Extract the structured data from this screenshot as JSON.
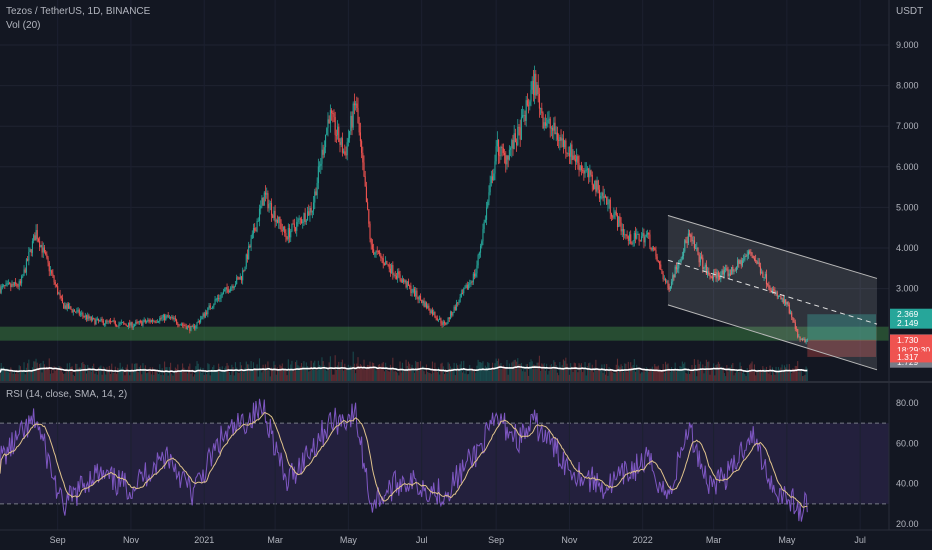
{
  "header": {
    "symbol_line": "Tezos / TetherUS, 1D, BINANCE",
    "volume_label": "Vol (20)",
    "currency": "USDT",
    "rsi_label": "RSI (14, close, SMA, 14, 2)"
  },
  "colors": {
    "background": "#131722",
    "up": "#26a69a",
    "down": "#ef5350",
    "rsi_line": "#7e57c2",
    "rsi_ma": "#e0c38c",
    "rsi_band": "#2a2447",
    "channel": "#b8b8b8",
    "support_zone": "#4caf50",
    "volume_ma": "#ffffff"
  },
  "chart_data": [
    {
      "type": "candlestick",
      "title": "Tezos / TetherUS, 1D, BINANCE",
      "ylabel": "USDT",
      "ylim": [
        1.0,
        9.6
      ],
      "y_ticks": [
        "9.000",
        "8.000",
        "7.000",
        "6.000",
        "5.000",
        "4.000",
        "3.000"
      ],
      "x_ticks": [
        "Sep",
        "Nov",
        "2021",
        "Mar",
        "May",
        "Jul",
        "Sep",
        "Nov",
        "2022",
        "Mar",
        "May",
        "Jul"
      ],
      "x_range": [
        "2020-07-15",
        "2022-07-25"
      ],
      "approx_close_path": [
        [
          "2020-07-15",
          3.0
        ],
        [
          "2020-08-01",
          3.1
        ],
        [
          "2020-08-14",
          4.4
        ],
        [
          "2020-09-05",
          2.6
        ],
        [
          "2020-10-01",
          2.2
        ],
        [
          "2020-11-01",
          2.1
        ],
        [
          "2020-12-01",
          2.3
        ],
        [
          "2020-12-22",
          2.0
        ],
        [
          "2021-01-10",
          2.7
        ],
        [
          "2021-02-01",
          3.3
        ],
        [
          "2021-02-20",
          5.3
        ],
        [
          "2021-03-10",
          4.3
        ],
        [
          "2021-04-01",
          5.0
        ],
        [
          "2021-04-15",
          7.3
        ],
        [
          "2021-04-28",
          6.3
        ],
        [
          "2021-05-07",
          7.6
        ],
        [
          "2021-05-20",
          4.0
        ],
        [
          "2021-06-15",
          3.2
        ],
        [
          "2021-07-20",
          2.1
        ],
        [
          "2021-08-15",
          3.4
        ],
        [
          "2021-09-02",
          6.5
        ],
        [
          "2021-09-08",
          6.2
        ],
        [
          "2021-09-20",
          6.8
        ],
        [
          "2021-10-03",
          8.1
        ],
        [
          "2021-10-10",
          7.2
        ],
        [
          "2021-11-01",
          6.4
        ],
        [
          "2021-12-01",
          5.2
        ],
        [
          "2021-12-20",
          4.2
        ],
        [
          "2022-01-05",
          4.3
        ],
        [
          "2022-01-22",
          3.0
        ],
        [
          "2022-02-08",
          4.3
        ],
        [
          "2022-02-25",
          3.3
        ],
        [
          "2022-03-15",
          3.4
        ],
        [
          "2022-04-01",
          3.9
        ],
        [
          "2022-04-20",
          2.9
        ],
        [
          "2022-05-01",
          2.6
        ],
        [
          "2022-05-12",
          1.7
        ],
        [
          "2022-05-18",
          1.73
        ]
      ],
      "price_badges": [
        {
          "label": "2.369",
          "color": "#26a69a"
        },
        {
          "label": "2.149",
          "color": "#26a69a"
        },
        {
          "label": "1.738",
          "color": "#787b86"
        },
        {
          "label": "1.730",
          "color": "#ef5350"
        },
        {
          "label": "18:29:30",
          "color": "#ef5350"
        },
        {
          "label": "1.729",
          "color": "#787b86"
        },
        {
          "label": "1.317",
          "color": "#ef5350"
        }
      ]
    },
    {
      "type": "line",
      "title": "RSI (14, close, SMA, 14, 2)",
      "ylim": [
        20,
        85
      ],
      "y_ticks": [
        "80.00",
        "60.00",
        "40.00",
        "20.00"
      ],
      "band": [
        30,
        70
      ],
      "series": [
        {
          "values": [
            [
              "2020-07-15",
              52
            ],
            [
              "2020-08-14",
              72
            ],
            [
              "2020-09-05",
              28
            ],
            [
              "2020-10-01",
              45
            ],
            [
              "2020-11-01",
              38
            ],
            [
              "2020-12-01",
              55
            ],
            [
              "2020-12-22",
              35
            ],
            [
              "2021-01-15",
              62
            ],
            [
              "2021-02-20",
              78
            ],
            [
              "2021-03-10",
              40
            ],
            [
              "2021-04-15",
              70
            ],
            [
              "2021-05-07",
              74
            ],
            [
              "2021-05-20",
              30
            ],
            [
              "2021-06-15",
              42
            ],
            [
              "2021-07-20",
              35
            ],
            [
              "2021-08-15",
              55
            ],
            [
              "2021-09-02",
              72
            ],
            [
              "2021-09-20",
              62
            ],
            [
              "2021-10-03",
              70
            ],
            [
              "2021-11-01",
              48
            ],
            [
              "2021-12-01",
              38
            ],
            [
              "2022-01-05",
              52
            ],
            [
              "2022-01-22",
              33
            ],
            [
              "2022-02-08",
              68
            ],
            [
              "2022-02-25",
              40
            ],
            [
              "2022-03-15",
              45
            ],
            [
              "2022-04-01",
              66
            ],
            [
              "2022-04-20",
              38
            ],
            [
              "2022-05-05",
              32
            ],
            [
              "2022-05-12",
              25
            ],
            [
              "2022-05-18",
              31
            ]
          ]
        }
      ]
    }
  ]
}
